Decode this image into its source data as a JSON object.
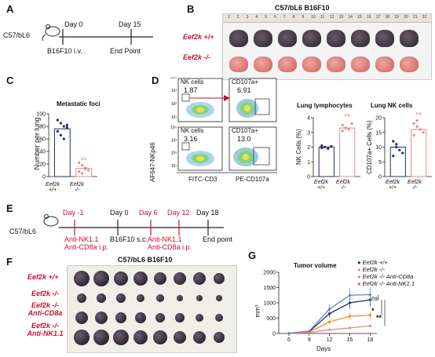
{
  "panel_letters": {
    "a": "A",
    "b": "B",
    "c": "C",
    "d": "D",
    "e": "E",
    "f": "F",
    "g": "G"
  },
  "panel_a": {
    "mouse": "C57/bL6",
    "day0": "Day 0",
    "day15": "Day 15",
    "injection": "B16F10 i.v.",
    "end": "End Point"
  },
  "panel_b": {
    "title": "C57/bL6 B16F10",
    "row1": "Eef2k +/+",
    "row2": "Eef2k -/-",
    "ruler": [
      "1",
      "2",
      "3",
      "4",
      "5",
      "6",
      "7",
      "8",
      "9",
      "10",
      "11",
      "12",
      "13",
      "14",
      "15",
      "16",
      "17",
      "18",
      "19",
      "20",
      "21",
      "22"
    ]
  },
  "panel_c": {
    "title": "Metastatic foci",
    "ylabel": "Number  per lung",
    "yticks": [
      "0",
      "20",
      "40",
      "60",
      "80",
      "100"
    ],
    "g1": "Eef2k",
    "g1s": "+/+",
    "g2": "Eef2k",
    "g2s": "-/-",
    "sig": "**"
  },
  "panel_d": {
    "ylabel": "AF647-NKp46",
    "xlabel1": "FITC-CD3",
    "xlabel2": "PE-CD107a",
    "gate1": "NK cells",
    "val1": "1.87",
    "gate2": "CD107a+",
    "val2": "6.91",
    "gate3": "NK cells",
    "val3": "3.16",
    "gate4": "CD107a+",
    "val4": "13.0",
    "ticks": [
      "10¹",
      "10²",
      "10³",
      "10⁴"
    ],
    "bar1_title": "Lung lymphocytes",
    "bar1_ylabel": "NK Cells (%)",
    "bar1_yticks": [
      "0",
      "1",
      "2",
      "3",
      "4"
    ],
    "bar2_title": "Lung NK cells",
    "bar2_ylabel": "CD107a+ Cells (%)",
    "bar2_yticks": [
      "0",
      "5",
      "10",
      "15",
      "20"
    ],
    "g1": "Eef2k",
    "g1s": "+/+",
    "g2": "Eef2k",
    "g2s": "-/-",
    "sig": "**"
  },
  "panel_e": {
    "mouse": "C57/bL6",
    "d_1": "Day -1",
    "d0": "Day 0",
    "d6": "Day 6",
    "d12": "Day 12",
    "d18": "Day 18",
    "ab1": "Anti-NK1.1",
    "ab2": "Anti-CD8a i.p.",
    "inj": "B16F10 s.c.",
    "ab3": "Anti-NK1.1",
    "ab4": "Anti-CD8a i.p.",
    "end": "End point"
  },
  "panel_f": {
    "title": "C57/bL6 B16F10",
    "row1": "Eef2k +/+",
    "row2": "Eef2k -/-",
    "row3a": "Eef2k -/-",
    "row3b": "Anti-CD8a",
    "row4a": "Eef2k -/-",
    "row4b": "Anti-NK1.1"
  },
  "panel_g": {
    "title": "Tumor volume",
    "ylabel": "mm³",
    "xlabel": "Days",
    "ns": "ns",
    "sig1": "*",
    "sig2": "**"
  },
  "colors": {
    "wt": "#1f2f5f",
    "ko": "#e88a8a",
    "koCD8": "#f28c28",
    "koNK": "#6b7fc4",
    "red": "#c8102e"
  },
  "chart_data": [
    {
      "type": "bar",
      "title": "Metastatic foci",
      "ylabel": "Number  per lung",
      "categories": [
        "Eef2k +/+",
        "Eef2k -/-"
      ],
      "values": [
        76,
        13
      ],
      "ylim": [
        0,
        100
      ]
    },
    {
      "type": "bar",
      "title": "Lung lymphocytes",
      "ylabel": "NK Cells (%)",
      "categories": [
        "Eef2k +/+",
        "Eef2k -/-"
      ],
      "values": [
        2.0,
        3.3
      ],
      "ylim": [
        0,
        4
      ]
    },
    {
      "type": "bar",
      "title": "Lung NK cells",
      "ylabel": "CD107a+ Cells (%)",
      "categories": [
        "Eef2k +/+",
        "Eef2k -/-"
      ],
      "values": [
        10,
        16
      ],
      "ylim": [
        0,
        20
      ]
    },
    {
      "type": "line",
      "title": "Tumor volume",
      "xlabel": "Days",
      "ylabel": "mm³",
      "x": [
        6,
        9,
        12,
        15,
        18
      ],
      "ylim": [
        0,
        2000
      ],
      "series": [
        {
          "name": "Eef2k +/+",
          "values": [
            5,
            60,
            650,
            1000,
            1100
          ]
        },
        {
          "name": "Eef2k -/-",
          "values": [
            5,
            30,
            120,
            180,
            250
          ]
        },
        {
          "name": "Eef2k -/- Anti-CD8a",
          "values": [
            5,
            50,
            380,
            560,
            600
          ]
        },
        {
          "name": "Eef2k -/- Anti-NK1.1",
          "values": [
            5,
            80,
            800,
            1250,
            1270
          ]
        }
      ]
    }
  ]
}
